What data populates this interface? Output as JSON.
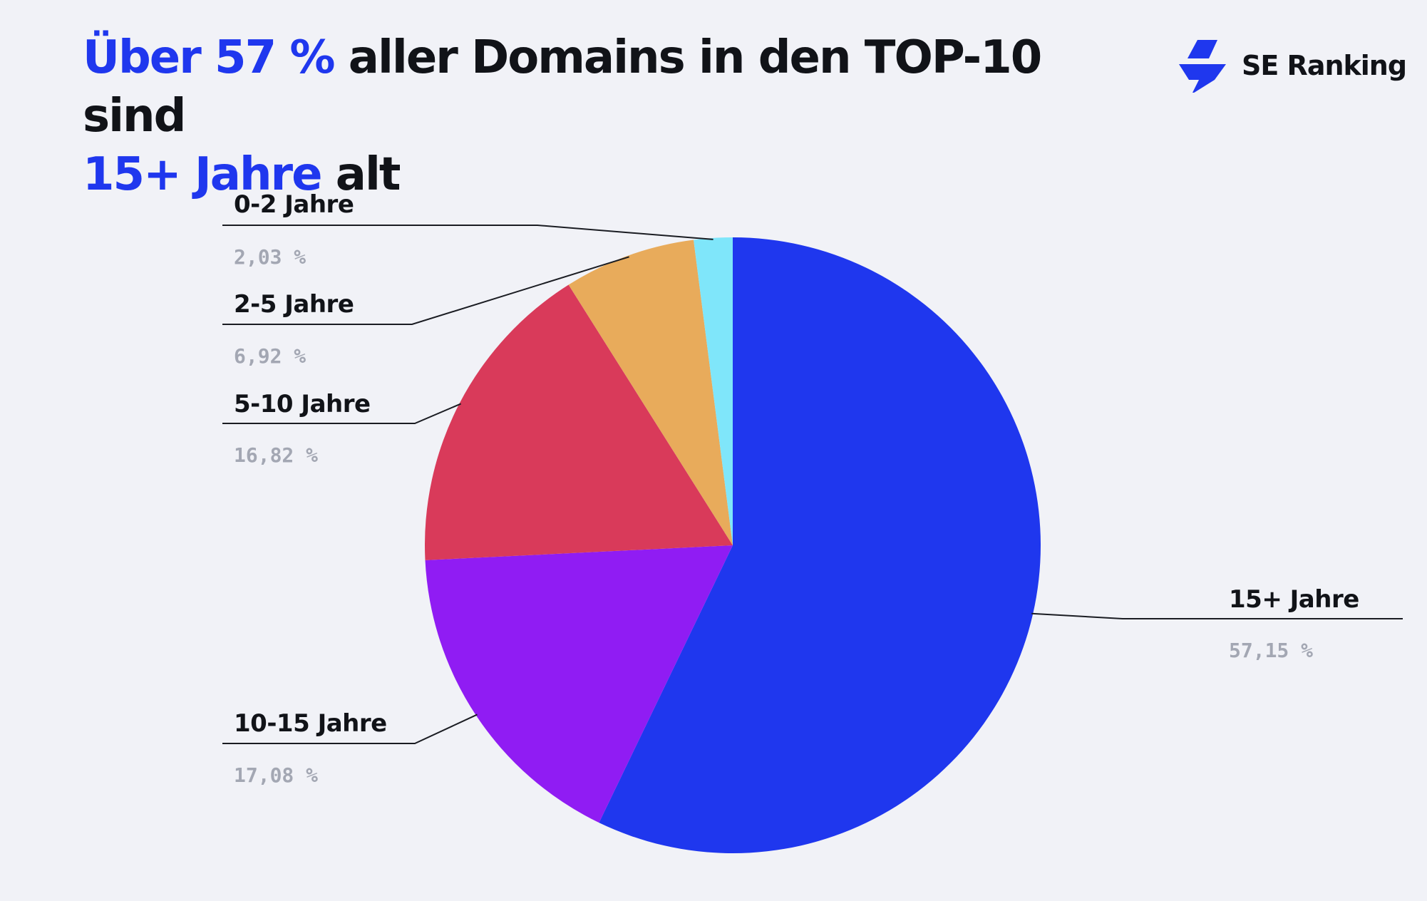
{
  "title": {
    "part1": "Über 57 %",
    "part2": " aller Domains in den TOP-10 sind ",
    "part3": "15+ Jahre",
    "part4": " alt",
    "highlight_color": "#1f37ee",
    "text_color": "#111318"
  },
  "logo": {
    "text": "SE Ranking",
    "icon": "se-ranking-logo-icon"
  },
  "chart_data": {
    "type": "pie",
    "start": "12 o'clock",
    "direction": "clockwise",
    "slices": [
      {
        "label": "15+ Jahre",
        "value": 57.15,
        "value_label": "57,15 %",
        "color": "#1f37ee"
      },
      {
        "label": "10-15 Jahre",
        "value": 17.08,
        "value_label": "17,08 %",
        "color": "#901cf3"
      },
      {
        "label": "5-10 Jahre",
        "value": 16.82,
        "value_label": "16,82 %",
        "color": "#d93a5a"
      },
      {
        "label": "2-5 Jahre",
        "value": 6.92,
        "value_label": "6,92 %",
        "color": "#e8ab5b"
      },
      {
        "label": "0-2 Jahre",
        "value": 2.03,
        "value_label": "2,03 %",
        "color": "#7fe6fa"
      }
    ]
  }
}
